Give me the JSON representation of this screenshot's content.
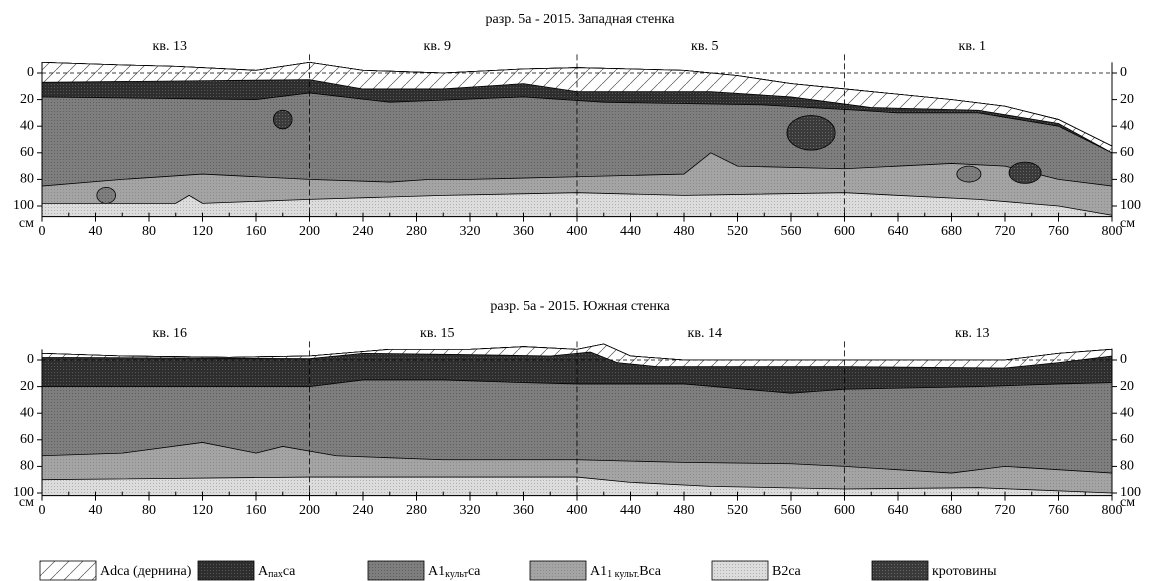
{
  "panels": [
    {
      "title": "разр. 5а - 2015. Западная стенка",
      "squares": [
        "кв. 13",
        "кв. 9",
        "кв. 5",
        "кв. 1"
      ],
      "depth_unit": "см",
      "xticks": [
        0,
        40,
        80,
        120,
        160,
        200,
        240,
        280,
        320,
        360,
        400,
        440,
        480,
        520,
        560,
        600,
        640,
        680,
        720,
        760,
        800
      ],
      "yticks": [
        0,
        20,
        40,
        60,
        80,
        100
      ]
    },
    {
      "title": "разр. 5а - 2015. Южная стенка",
      "squares": [
        "кв. 16",
        "кв. 15",
        "кв. 14",
        "кв. 13"
      ],
      "depth_unit": "см",
      "xticks": [
        0,
        40,
        80,
        120,
        160,
        200,
        240,
        280,
        320,
        360,
        400,
        440,
        480,
        520,
        560,
        600,
        640,
        680,
        720,
        760,
        800
      ],
      "yticks": [
        0,
        20,
        40,
        60,
        80,
        100
      ]
    }
  ],
  "legend": [
    {
      "main": "Adca (дернина)"
    },
    {
      "main": "A",
      "sub": "пах",
      "tail": "ca"
    },
    {
      "main": "A1",
      "sub": "культ",
      "tail": "ca"
    },
    {
      "main": "A1",
      "sub": "1 культ.",
      "tail": "Bca"
    },
    {
      "main": "B2ca"
    },
    {
      "main": "кротовины"
    }
  ]
}
